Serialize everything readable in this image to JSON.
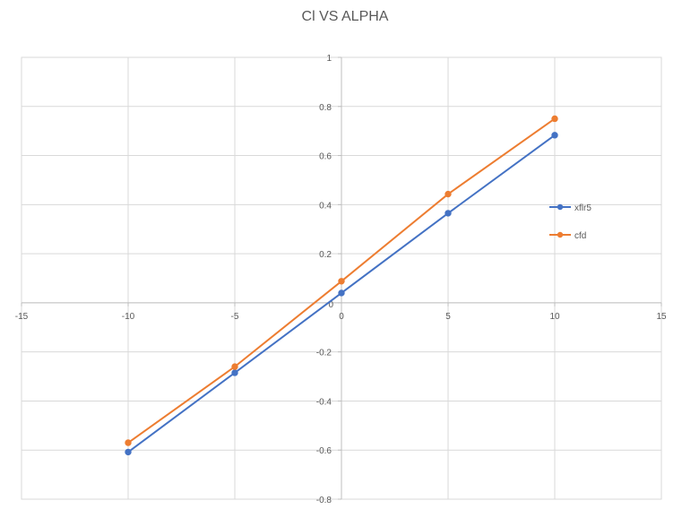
{
  "chart_data": {
    "type": "line",
    "title": "Cl VS ALPHA",
    "xlim": [
      -15,
      15
    ],
    "ylim": [
      -0.8,
      1
    ],
    "x_ticks": [
      -15,
      -10,
      -5,
      0,
      5,
      10,
      15
    ],
    "y_ticks": [
      -0.8,
      -0.6,
      -0.4,
      -0.2,
      0,
      0.2,
      0.4,
      0.6,
      0.8,
      1
    ],
    "x_tick_labels": [
      "-15",
      "-10",
      "-5",
      "0",
      "5",
      "10",
      "15"
    ],
    "y_tick_labels": [
      "-0.8",
      "-0.6",
      "-0.4",
      "-0.2",
      "0",
      "0.2",
      "0.4",
      "0.6",
      "0.8",
      "1"
    ],
    "grid": true,
    "legend_position": "right",
    "series": [
      {
        "name": "xflr5",
        "color": "#4472c4",
        "x": [
          -10,
          -5,
          0,
          5,
          10
        ],
        "y": [
          -0.608,
          -0.285,
          0.04,
          0.365,
          0.683
        ]
      },
      {
        "name": "cfd",
        "color": "#ed7d31",
        "x": [
          -10,
          -5,
          0,
          5,
          10
        ],
        "y": [
          -0.57,
          -0.26,
          0.088,
          0.443,
          0.75
        ]
      }
    ]
  }
}
